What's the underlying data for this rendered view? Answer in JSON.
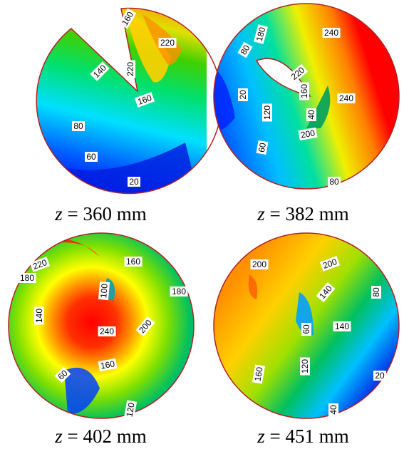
{
  "panels": [
    {
      "id": "p1",
      "variable": "z",
      "equals": " = ",
      "value": "360 mm",
      "labels": [
        {
          "text": "160"
        },
        {
          "text": "220"
        },
        {
          "text": "140"
        },
        {
          "text": "220"
        },
        {
          "text": "160"
        },
        {
          "text": "80"
        },
        {
          "text": "60"
        },
        {
          "text": "20"
        }
      ]
    },
    {
      "id": "p2",
      "variable": "z",
      "equals": " = ",
      "value": "382 mm",
      "labels": [
        {
          "text": "180"
        },
        {
          "text": "80"
        },
        {
          "text": "240"
        },
        {
          "text": "220"
        },
        {
          "text": "20"
        },
        {
          "text": "160"
        },
        {
          "text": "240"
        },
        {
          "text": "120"
        },
        {
          "text": "40"
        },
        {
          "text": "200"
        },
        {
          "text": "60"
        },
        {
          "text": "80"
        }
      ]
    },
    {
      "id": "p3",
      "variable": "z",
      "equals": " = ",
      "value": "402 mm",
      "labels": [
        {
          "text": "220"
        },
        {
          "text": "160"
        },
        {
          "text": "180"
        },
        {
          "text": "100"
        },
        {
          "text": "180"
        },
        {
          "text": "140"
        },
        {
          "text": "240"
        },
        {
          "text": "200"
        },
        {
          "text": "160"
        },
        {
          "text": "60"
        },
        {
          "text": "120"
        }
      ]
    },
    {
      "id": "p4",
      "variable": "z",
      "equals": " = ",
      "value": "451 mm",
      "labels": [
        {
          "text": "200"
        },
        {
          "text": "200"
        },
        {
          "text": "140"
        },
        {
          "text": "80"
        },
        {
          "text": "140"
        },
        {
          "text": "60"
        },
        {
          "text": "160"
        },
        {
          "text": "120"
        },
        {
          "text": "20"
        },
        {
          "text": "40"
        }
      ]
    }
  ],
  "colors": {
    "red": "#ff0000",
    "orange": "#ff8000",
    "yellow": "#ffff00",
    "green": "#00c000",
    "cyan": "#00ffff",
    "blue": "#0000ff",
    "outline": "#b22222"
  }
}
